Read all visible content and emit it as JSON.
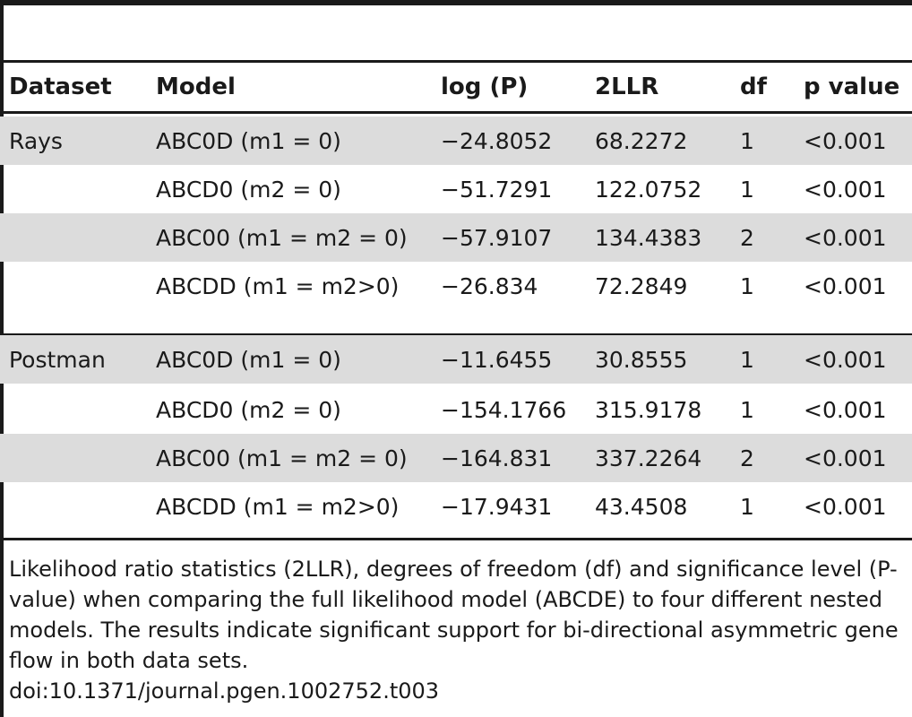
{
  "table": {
    "headers": {
      "dataset": "Dataset",
      "model": "Model",
      "logp": "log (P)",
      "llr": "2LLR",
      "df": "df",
      "p": "p value"
    },
    "groups": [
      {
        "dataset": "Rays",
        "rows": [
          {
            "model": "ABC0D (m1 = 0)",
            "logp": "−24.8052",
            "llr": "68.2272",
            "df": "1",
            "p": "<0.001"
          },
          {
            "model": "ABCD0 (m2 = 0)",
            "logp": "−51.7291",
            "llr": "122.0752",
            "df": "1",
            "p": "<0.001"
          },
          {
            "model": "ABC00 (m1 = m2 = 0)",
            "logp": "−57.9107",
            "llr": "134.4383",
            "df": "2",
            "p": "<0.001"
          },
          {
            "model": "ABCDD (m1 = m2>0)",
            "logp": "−26.834",
            "llr": "72.2849",
            "df": "1",
            "p": "<0.001"
          }
        ]
      },
      {
        "dataset": "Postman",
        "rows": [
          {
            "model": "ABC0D (m1 = 0)",
            "logp": "−11.6455",
            "llr": "30.8555",
            "df": "1",
            "p": "<0.001"
          },
          {
            "model": "ABCD0 (m2 = 0)",
            "logp": "−154.1766",
            "llr": "315.9178",
            "df": "1",
            "p": "<0.001"
          },
          {
            "model": "ABC00 (m1 = m2 = 0)",
            "logp": "−164.831",
            "llr": "337.2264",
            "df": "2",
            "p": "<0.001"
          },
          {
            "model": "ABCDD (m1 = m2>0)",
            "logp": "−17.9431",
            "llr": "43.4508",
            "df": "1",
            "p": "<0.001"
          }
        ]
      }
    ]
  },
  "caption": "Likelihood ratio statistics (2LLR), degrees of freedom (df) and significance level (P-value) when comparing the full likelihood model (ABCDE) to four different nested models. The results indicate significant support for bi-directional asymmetric gene flow in both data sets.",
  "doi": "doi:10.1371/journal.pgen.1002752.t003",
  "colors": {
    "rule": "#1a1a1a",
    "shade": "#dcdcdc"
  }
}
